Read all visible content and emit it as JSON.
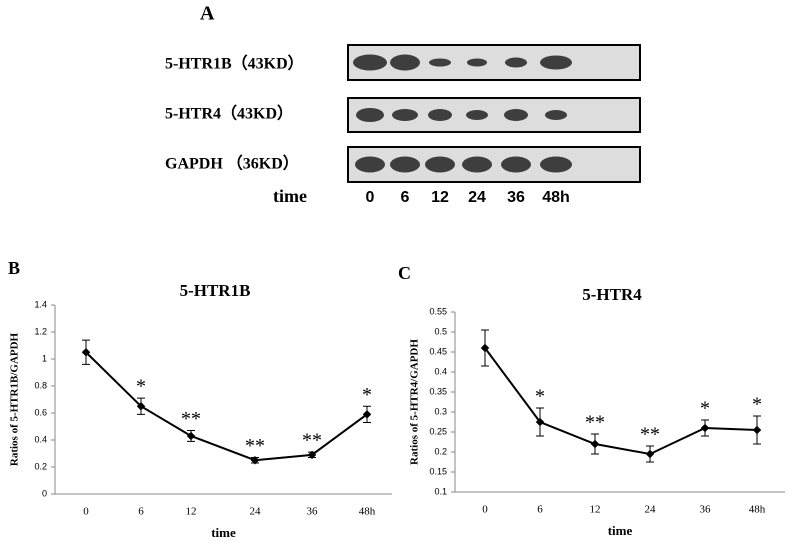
{
  "panel_labels": [
    "A",
    "B",
    "C"
  ],
  "blot": {
    "rows": [
      "5-HTR1B（43KD）",
      "5-HTR4（43KD）",
      "GAPDH （36KD）"
    ],
    "time_label": "time",
    "lanes": [
      "0",
      "6",
      "12",
      "24",
      "36",
      "48h"
    ]
  },
  "chart_data": [
    {
      "type": "line",
      "title": "5-HTR1B",
      "x_label": "time",
      "y_label": "Ratios of 5-HTR1B/GAPDH",
      "categories": [
        "0",
        "6",
        "12",
        "24",
        "36",
        "48h"
      ],
      "series": [
        {
          "name": "5-HTR1B",
          "color": "#000000",
          "values": [
            1.05,
            0.65,
            0.43,
            0.25,
            0.29,
            0.59
          ],
          "errors": [
            0.09,
            0.06,
            0.04,
            0.02,
            0.02,
            0.06
          ]
        }
      ],
      "annotations": [
        null,
        "*",
        "**",
        "**",
        "**",
        "*"
      ],
      "ylim": [
        0,
        1.4
      ],
      "yticks": [
        0,
        0.2,
        0.4,
        0.6,
        0.8,
        1,
        1.2,
        1.4
      ]
    },
    {
      "type": "line",
      "title": "5-HTR4",
      "x_label": "time",
      "y_label": "Ratios of 5-HTR4/GAPDH",
      "categories": [
        "0",
        "6",
        "12",
        "24",
        "36",
        "48h"
      ],
      "series": [
        {
          "name": "5-HTR4",
          "color": "#000000",
          "values": [
            0.46,
            0.275,
            0.22,
            0.195,
            0.26,
            0.255
          ],
          "errors": [
            0.045,
            0.035,
            0.025,
            0.02,
            0.02,
            0.035
          ]
        }
      ],
      "annotations": [
        null,
        "*",
        "**",
        "**",
        "*",
        "*"
      ],
      "ylim": [
        0.1,
        0.55
      ],
      "yticks": [
        0.1,
        0.15,
        0.2,
        0.25,
        0.3,
        0.35,
        0.4,
        0.45,
        0.5,
        0.55
      ]
    }
  ]
}
